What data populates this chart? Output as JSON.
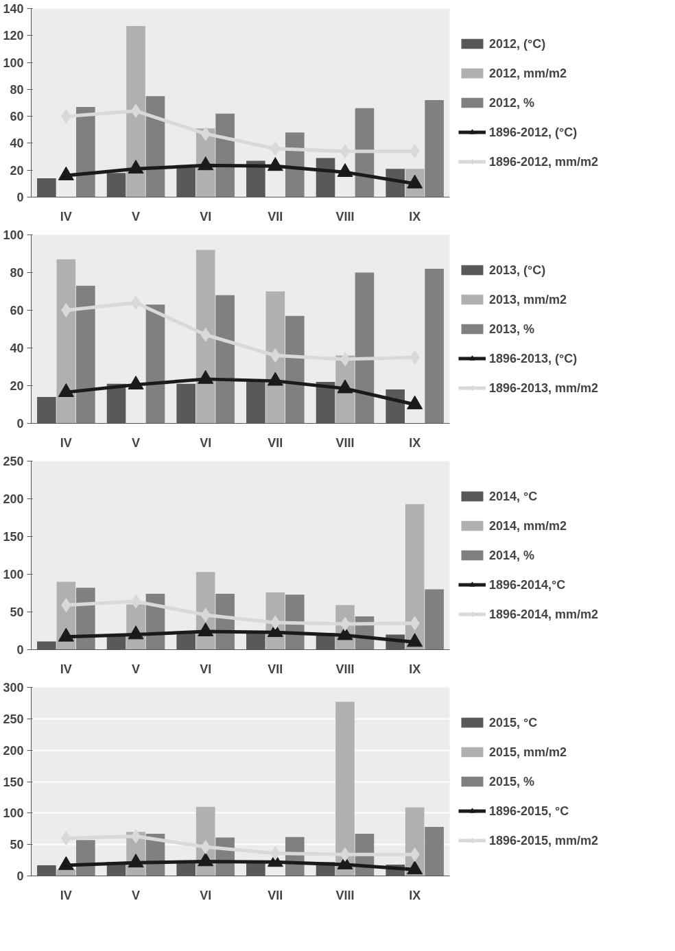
{
  "chart_data": [
    {
      "type": "bar",
      "categories": [
        "IV",
        "V",
        "VI",
        "VII",
        "VIII",
        "IX"
      ],
      "ylim": [
        0,
        140
      ],
      "yticks": [
        0,
        20,
        40,
        60,
        80,
        100,
        120,
        140
      ],
      "grid": false,
      "legend": "right",
      "series": [
        {
          "name": "2012, (°C)",
          "color": "#595959",
          "values": [
            14,
            18,
            22,
            27,
            29,
            21
          ]
        },
        {
          "name": "2012, mm/m2",
          "color": "#b0b0b0",
          "values": [
            null,
            127,
            51,
            null,
            null,
            21
          ]
        },
        {
          "name": "2012, %",
          "color": "#808080",
          "values": [
            67,
            75,
            62,
            48,
            66,
            72
          ]
        },
        {
          "name": "1896-2012, (°C)",
          "type": "line",
          "marker": "triangle",
          "color": "#1a1a1a",
          "values": [
            16,
            21,
            23.5,
            23,
            18.5,
            10
          ]
        },
        {
          "name": "1896-2012, mm/m2",
          "type": "line",
          "marker": "diamond",
          "color": "#d9d9d9",
          "values": [
            60,
            64,
            47,
            36,
            34,
            34
          ]
        }
      ]
    },
    {
      "type": "bar",
      "categories": [
        "IV",
        "V",
        "VI",
        "VII",
        "VIII",
        "IX"
      ],
      "ylim": [
        0,
        100
      ],
      "yticks": [
        0,
        20,
        40,
        60,
        80,
        100
      ],
      "grid": false,
      "legend": "right",
      "series": [
        {
          "name": "2013, (°C)",
          "color": "#595959",
          "values": [
            14,
            21,
            21,
            22,
            22,
            18
          ]
        },
        {
          "name": "2013, mm/m2",
          "color": "#b0b0b0",
          "values": [
            87,
            0,
            92,
            70,
            36,
            null
          ]
        },
        {
          "name": "2013, %",
          "color": "#808080",
          "values": [
            73,
            63,
            68,
            57,
            80,
            82
          ]
        },
        {
          "name": "1896-2013, (°C)",
          "type": "line",
          "marker": "triangle",
          "color": "#1a1a1a",
          "values": [
            16.5,
            20.5,
            23.5,
            22.5,
            18.5,
            10
          ]
        },
        {
          "name": "1896-2013, mm/m2",
          "type": "line",
          "marker": "diamond",
          "color": "#d9d9d9",
          "values": [
            60,
            64,
            47,
            36,
            34,
            35
          ]
        }
      ]
    },
    {
      "type": "bar",
      "categories": [
        "IV",
        "V",
        "VI",
        "VII",
        "VIII",
        "IX"
      ],
      "ylim": [
        0,
        250
      ],
      "yticks": [
        0,
        50,
        100,
        150,
        200,
        250
      ],
      "grid": false,
      "legend": "right",
      "series": [
        {
          "name": "2014, °C",
          "color": "#595959",
          "values": [
            11,
            18,
            22,
            24,
            22,
            20
          ]
        },
        {
          "name": "2014, mm/m2",
          "color": "#b0b0b0",
          "values": [
            90,
            60,
            103,
            76,
            59,
            193
          ]
        },
        {
          "name": "2014, %",
          "color": "#808080",
          "values": [
            82,
            74,
            74,
            73,
            44,
            80
          ]
        },
        {
          "name": "1896-2014,°C",
          "type": "line",
          "marker": "triangle",
          "color": "#1a1a1a",
          "values": [
            17,
            20,
            24,
            23,
            19,
            10
          ]
        },
        {
          "name": "1896-2014, mm/m2",
          "type": "line",
          "marker": "diamond",
          "color": "#d9d9d9",
          "values": [
            59,
            64,
            46,
            36,
            34,
            35
          ]
        }
      ]
    },
    {
      "type": "bar",
      "categories": [
        "IV",
        "V",
        "VI",
        "VII",
        "VIII",
        "IX"
      ],
      "ylim": [
        0,
        300
      ],
      "yticks": [
        0,
        50,
        100,
        150,
        200,
        250,
        300
      ],
      "grid": "y",
      "legend": "right",
      "series": [
        {
          "name": "2015, °C",
          "color": "#595959",
          "values": [
            17,
            22,
            22,
            22,
            22,
            18
          ]
        },
        {
          "name": "2015, mm/m2",
          "color": "#b0b0b0",
          "values": [
            10,
            70,
            110,
            null,
            277,
            109
          ]
        },
        {
          "name": "2015, %",
          "color": "#808080",
          "values": [
            57,
            67,
            61,
            62,
            67,
            78
          ]
        },
        {
          "name": "1896-2015, °C",
          "type": "line",
          "marker": "triangle",
          "color": "#1a1a1a",
          "values": [
            17,
            21,
            23,
            22,
            18,
            10
          ]
        },
        {
          "name": "1896-2015, mm/m2",
          "type": "line",
          "marker": "diamond",
          "color": "#d9d9d9",
          "values": [
            60,
            63,
            46,
            36,
            34,
            34
          ]
        }
      ]
    }
  ]
}
